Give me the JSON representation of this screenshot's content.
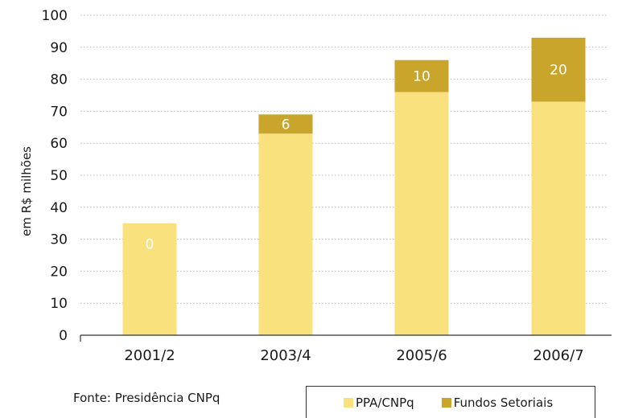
{
  "chart_data": {
    "type": "bar",
    "stacked": true,
    "categories": [
      "2001/2",
      "2003/4",
      "2005/6",
      "2006/7"
    ],
    "series": [
      {
        "name": "PPA/CNPq",
        "values": [
          35,
          63,
          76,
          73
        ],
        "color": "#f9e17e"
      },
      {
        "name": "Fundos Setoriais",
        "values": [
          0,
          6,
          10,
          20
        ],
        "color": "#c9a62b"
      }
    ],
    "data_labels": [
      "0",
      "6",
      "10",
      "20"
    ],
    "ylabel": "em R$ milhões",
    "ylim": [
      0,
      100
    ],
    "yticks": [
      0,
      10,
      20,
      30,
      40,
      50,
      60,
      70,
      80,
      90,
      100
    ],
    "grid": true,
    "legend_position": "bottom-right"
  },
  "source_note": "Fonte: Presidência CNPq"
}
